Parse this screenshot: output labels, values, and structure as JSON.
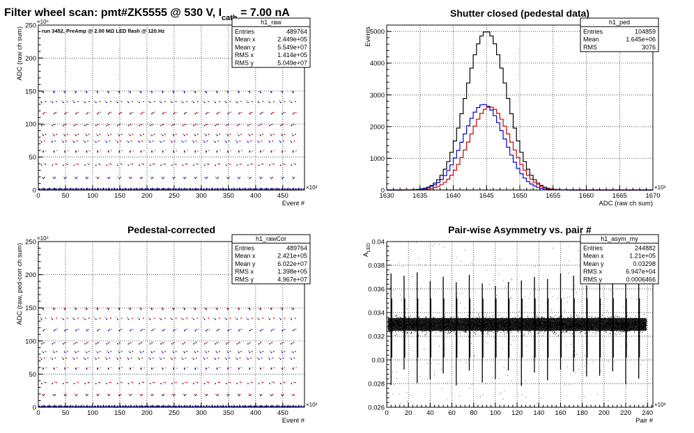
{
  "figure_title": {
    "main": "Filter wheel scan: pmt#ZK5555 @   530 V, I",
    "sub": "cath",
    "tail": " = 7.00 nA"
  },
  "chart_data": [
    {
      "id": "p1",
      "type": "scatter",
      "title": "",
      "xlabel": "Event #",
      "ylabel": "ADC (raw ch sum)",
      "x_multiplier": "×10³",
      "y_multiplier": "×10⁶",
      "xlim": [
        0,
        490
      ],
      "ylim": [
        0,
        250
      ],
      "xticks": [
        0,
        50,
        100,
        150,
        200,
        250,
        300,
        350,
        400,
        450
      ],
      "yticks": [
        0,
        50,
        100,
        150,
        200,
        250
      ],
      "xtick_labels": [
        "0",
        "50",
        "100",
        "150",
        "200",
        "250",
        "300",
        "350",
        "400",
        "450"
      ],
      "ytick_labels": [
        "0",
        "50",
        "100",
        "150",
        "200",
        "250"
      ],
      "annotation": "run 3452, PreAmp @ 2.00 MΩ  LED flash @  120.Hz",
      "levels": [
        0,
        20,
        40,
        60,
        75,
        85,
        100,
        118,
        135,
        150
      ],
      "period": 20,
      "stats": {
        "name": "h1_raw",
        "rows": [
          [
            "Entries",
            "489764"
          ],
          [
            "Mean x",
            "2.449e+05"
          ],
          [
            "Mean y",
            "5.549e+07"
          ],
          [
            "RMS x",
            "1.414e+05"
          ],
          [
            "RMS y",
            "5.049e+07"
          ]
        ]
      }
    },
    {
      "id": "p2",
      "type": "line",
      "title": "Shutter closed (pedestal data)",
      "xlabel": "ADC (raw ch sum)",
      "ylabel": "Events",
      "x_multiplier": "×10³",
      "xlim": [
        1630,
        1670
      ],
      "ylim": [
        0,
        5200
      ],
      "xticks": [
        1630,
        1635,
        1640,
        1645,
        1650,
        1655,
        1660,
        1665,
        1670
      ],
      "yticks": [
        0,
        1000,
        2000,
        3000,
        4000,
        5000
      ],
      "xtick_labels": [
        "1630",
        "1635",
        "1640",
        "1645",
        "1650",
        "1655",
        "1660",
        "1665",
        "1670"
      ],
      "ytick_labels": [
        "0",
        "1000",
        "2000",
        "3000",
        "4000",
        "5000"
      ],
      "series": [
        {
          "color": "#000000",
          "center": 1645,
          "sigma": 3.1,
          "peak": 5000
        },
        {
          "color": "#cc0000",
          "center": 1645.5,
          "sigma": 3.1,
          "peak": 2620
        },
        {
          "color": "#0000cc",
          "center": 1644.6,
          "sigma": 3.1,
          "peak": 2700
        }
      ],
      "stats": {
        "name": "h1_ped",
        "rows": [
          [
            "Entries",
            "104859"
          ],
          [
            "Mean",
            "1.645e+06"
          ],
          [
            "RMS",
            "3076"
          ]
        ]
      }
    },
    {
      "id": "p3",
      "type": "scatter",
      "title": "Pedestal-corrected",
      "xlabel": "Event #",
      "ylabel": "ADC (raw, ped-corr ch sum)",
      "x_multiplier": "×10³",
      "y_multiplier": "×10⁶",
      "xlim": [
        0,
        490
      ],
      "ylim": [
        0,
        250
      ],
      "xticks": [
        0,
        50,
        100,
        150,
        200,
        250,
        300,
        350,
        400,
        450
      ],
      "yticks": [
        0,
        50,
        100,
        150,
        200,
        250
      ],
      "xtick_labels": [
        "0",
        "50",
        "100",
        "150",
        "200",
        "250",
        "300",
        "350",
        "400",
        "450"
      ],
      "ytick_labels": [
        "0",
        "50",
        "100",
        "150",
        "200",
        "250"
      ],
      "levels": [
        0,
        20,
        38,
        60,
        75,
        85,
        98,
        118,
        135,
        150
      ],
      "period": 20,
      "stats": {
        "name": "h1_rawCor",
        "rows": [
          [
            "Entries",
            "489764"
          ],
          [
            "Mean x",
            "2.421e+05"
          ],
          [
            "Mean y",
            "6.022e+07"
          ],
          [
            "RMS x",
            "1.398e+05"
          ],
          [
            "RMS y",
            "4.967e+07"
          ]
        ]
      }
    },
    {
      "id": "p4",
      "type": "scatter",
      "title": "Pair-wise Asymmetry vs. pair #",
      "xlabel": "Pair #",
      "ylabel": "A",
      "ylabel_sub": "LED",
      "x_multiplier": "×10³",
      "xlim": [
        0,
        245
      ],
      "ylim": [
        0.026,
        0.04
      ],
      "xticks": [
        0,
        20,
        40,
        60,
        80,
        100,
        120,
        140,
        160,
        180,
        200,
        220,
        240
      ],
      "yticks": [
        0.026,
        0.028,
        0.03,
        0.032,
        0.034,
        0.036,
        0.038,
        0.04
      ],
      "xtick_labels": [
        "0",
        "20",
        "40",
        "60",
        "80",
        "100",
        "120",
        "140",
        "160",
        "180",
        "200",
        "220",
        "240"
      ],
      "ytick_labels": [
        "0.026",
        "0.028",
        "0.03",
        "0.032",
        "0.034",
        "0.036",
        "0.038",
        "0.04"
      ],
      "band_center": 0.033,
      "band_halfwidth": 0.0006,
      "spike_period": 12,
      "stats": {
        "name": "h1_asym_my",
        "rows": [
          [
            "Entries",
            "244882"
          ],
          [
            "Mean x",
            "1.21e+05"
          ],
          [
            "Mean y",
            "0.03298"
          ],
          [
            "RMS x",
            "6.947e+04"
          ],
          [
            "RMS y",
            "0.0006466"
          ]
        ]
      }
    }
  ]
}
